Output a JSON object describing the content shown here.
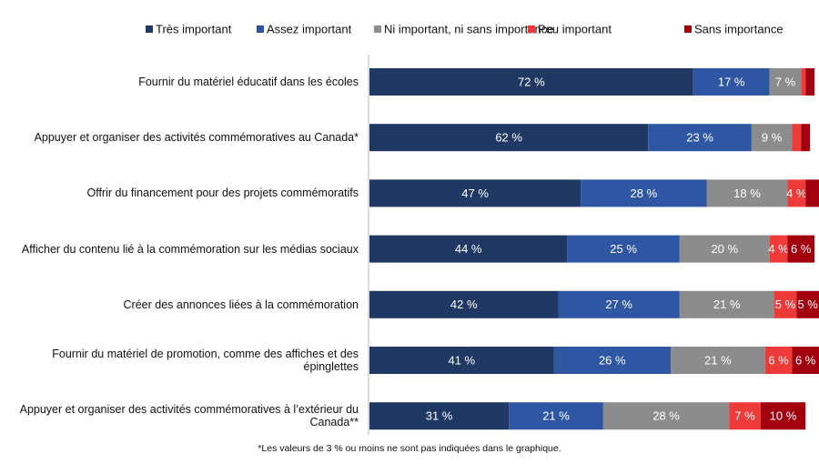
{
  "chart_data": {
    "type": "stacked-barh",
    "categories": [
      "Fournir du matériel éducatif dans les écoles",
      "Appuyer et organiser des activités commémoratives au Canada*",
      "Offrir du financement pour des projets commémoratifs",
      "Afficher du contenu lié à la commémoration sur les médias sociaux",
      "Créer des annonces liées à la commémoration",
      "Fournir du matériel de promotion, comme des affiches et des épinglettes",
      "Appuyer et organiser des activités commémoratives à l’extérieur du Canada**"
    ],
    "xlim": [
      0,
      100
    ],
    "legend": "top",
    "series": [
      {
        "name": "Très important",
        "color": "#203864",
        "values": [
          72,
          62,
          47,
          44,
          42,
          41,
          31
        ],
        "value_labels": [
          "72 %",
          "62 %",
          "47 %",
          "44 %",
          "42 %",
          "41 %",
          "31 %"
        ]
      },
      {
        "name": "Assez important",
        "color": "#2f56a3",
        "values": [
          17,
          23,
          28,
          25,
          27,
          26,
          21
        ],
        "value_labels": [
          "17 %",
          "23 %",
          "28 %",
          "25 %",
          "27 %",
          "26 %",
          "21 %"
        ]
      },
      {
        "name": "Ni important, ni sans importance",
        "color": "#8c8c8c",
        "values": [
          7,
          9,
          18,
          20,
          21,
          21,
          28
        ],
        "value_labels": [
          "7 %",
          "9 %",
          "18 %",
          "20 %",
          "21 %",
          "21 %",
          "28 %"
        ]
      },
      {
        "name": "Peu important",
        "color": "#ef3a3a",
        "values": [
          1,
          2,
          4,
          4,
          5,
          6,
          7
        ],
        "value_labels": [
          null,
          null,
          "4 %",
          "4 %",
          "5 %",
          "6 %",
          "7 %"
        ]
      },
      {
        "name": "Sans importance",
        "color": "#a3000f",
        "values": [
          2,
          2,
          3,
          6,
          5,
          6,
          10
        ],
        "value_labels": [
          null,
          null,
          null,
          "6 %",
          "5 %",
          "6 %",
          "10 %"
        ]
      }
    ],
    "footnote": "*Les valeurs de 3 % ou moins ne sont pas indiquées dans le graphique."
  }
}
